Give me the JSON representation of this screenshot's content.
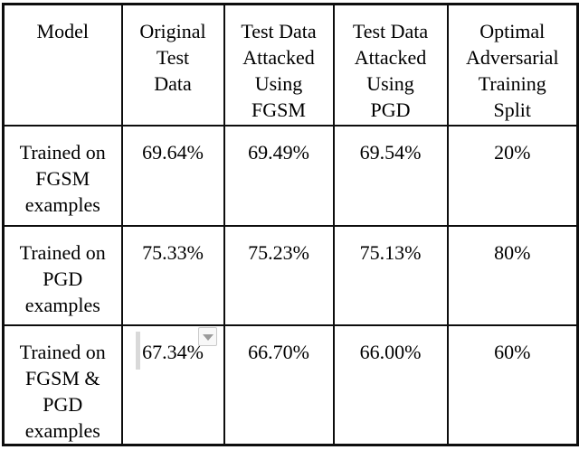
{
  "table": {
    "headers": [
      "Model",
      "Original\nTest\nData",
      "Test Data\nAttacked\nUsing\nFGSM",
      "Test Data\nAttacked\nUsing\nPGD",
      "Optimal\nAdversarial\nTraining\nSplit"
    ],
    "rows": [
      {
        "label": "Trained on\nFGSM\nexamples",
        "values": [
          "69.64%",
          "69.49%",
          "69.54%",
          "20%"
        ]
      },
      {
        "label": "Trained on\nPGD\nexamples",
        "values": [
          "75.33%",
          "75.23%",
          "75.13%",
          "80%"
        ]
      },
      {
        "label": "Trained on\nFGSM &\nPGD\nexamples",
        "values": [
          "67.34%",
          "66.70%",
          "66.00%",
          "60%"
        ]
      }
    ]
  },
  "chart_data": {
    "type": "table",
    "title": "",
    "columns": [
      "Model",
      "Original Test Data",
      "Test Data Attacked Using FGSM",
      "Test Data Attacked Using PGD",
      "Optimal Adversarial Training Split"
    ],
    "rows": [
      [
        "Trained on FGSM examples",
        "69.64%",
        "69.49%",
        "69.54%",
        "20%"
      ],
      [
        "Trained on PGD examples",
        "75.33%",
        "75.23%",
        "75.13%",
        "80%"
      ],
      [
        "Trained on FGSM & PGD examples",
        "67.34%",
        "66.70%",
        "66.00%",
        "60%"
      ]
    ]
  },
  "colors": {
    "border": "#0d0d0d",
    "background": "#ffffff",
    "text": "#000000",
    "caret": "#d9d9d9",
    "widget_border": "#c9c9c9",
    "widget_fill": "#f8f8f8",
    "widget_arrow": "#9b9b9b"
  },
  "icons": {
    "dropdown_arrow": "chevron-down-triangle"
  }
}
